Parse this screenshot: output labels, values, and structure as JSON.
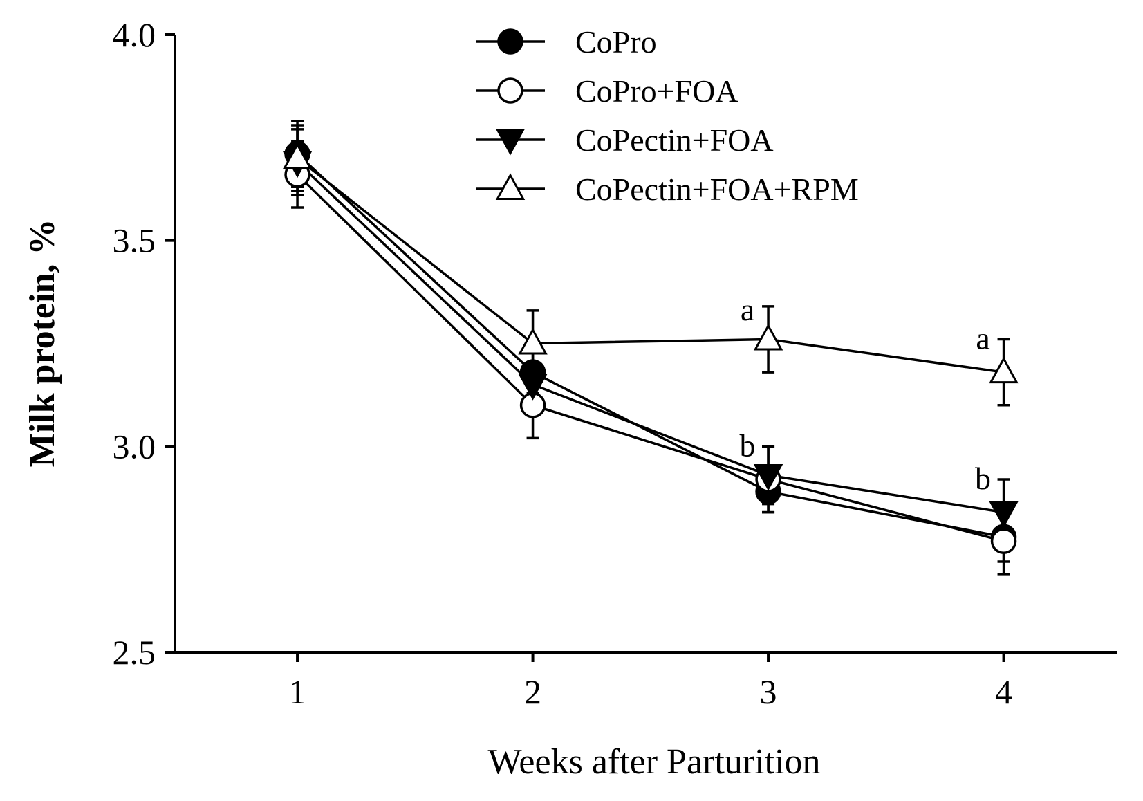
{
  "chart_data": {
    "type": "line",
    "title": "",
    "xlabel": "Weeks after Parturition",
    "ylabel": "Milk protein, %",
    "x": [
      1,
      2,
      3,
      4
    ],
    "xlim": [
      0.48,
      4.48
    ],
    "ylim": [
      2.5,
      4.0
    ],
    "x_ticks": [
      "1",
      "2",
      "3",
      "4"
    ],
    "y_ticks": [
      "2.5",
      "3.0",
      "3.5",
      "4.0"
    ],
    "y_tick_values": [
      2.5,
      3.0,
      3.5,
      4.0
    ],
    "grid": false,
    "legend_position": "top-center",
    "series": [
      {
        "name": "CoPro",
        "marker": "filled-circle",
        "values": [
          3.71,
          3.18,
          2.89,
          2.78
        ],
        "errors": [
          0.08,
          0.05,
          0.05,
          0.06
        ]
      },
      {
        "name": "CoPro+FOA",
        "marker": "open-circle",
        "values": [
          3.66,
          3.1,
          2.92,
          2.77
        ],
        "errors": [
          0.08,
          0.08,
          0.08,
          0.08
        ]
      },
      {
        "name": "CoPectin+FOA",
        "marker": "filled-triangle-down",
        "values": [
          3.69,
          3.15,
          2.93,
          2.84
        ],
        "errors": [
          0.08,
          0.05,
          0.07,
          0.08
        ]
      },
      {
        "name": "CoPectin+FOA+RPM",
        "marker": "open-triangle-up",
        "values": [
          3.7,
          3.25,
          3.26,
          3.18
        ],
        "errors": [
          0.08,
          0.08,
          0.08,
          0.08
        ]
      }
    ],
    "annotations": [
      {
        "text": "a",
        "x": 3,
        "y": 3.33
      },
      {
        "text": "a",
        "x": 4,
        "y": 3.26
      },
      {
        "text": "b",
        "x": 3,
        "y": 3.0
      },
      {
        "text": "b",
        "x": 4,
        "y": 2.92
      }
    ]
  }
}
